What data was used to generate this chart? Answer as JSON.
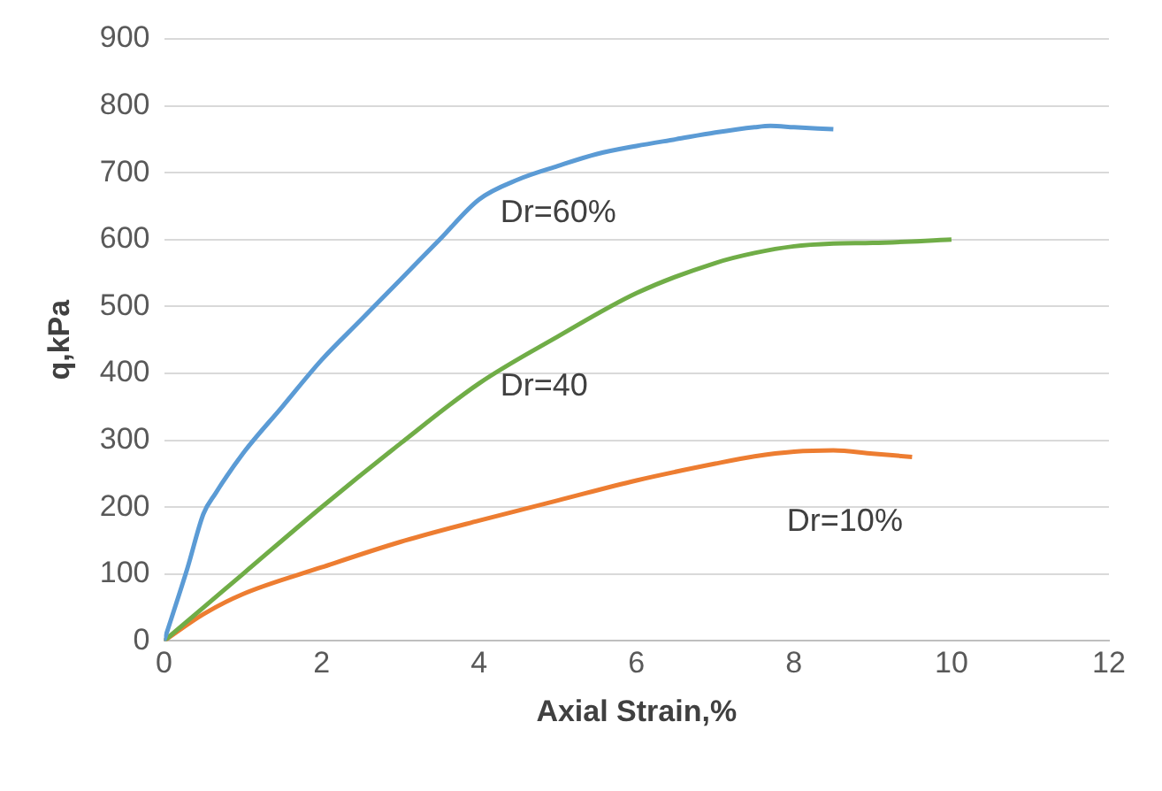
{
  "chart_data": {
    "type": "line",
    "xlabel": "Axial Strain,%",
    "ylabel": "q,kPa",
    "xlim": [
      0,
      12
    ],
    "xticks": [
      0,
      2,
      4,
      6,
      8,
      10,
      12
    ],
    "ylim": [
      0,
      900
    ],
    "yticks": [
      0,
      100,
      200,
      300,
      400,
      500,
      600,
      700,
      800,
      900
    ],
    "grid": "y",
    "marker": "none",
    "series": [
      {
        "name": "Dr=60%",
        "color": "#5b9bd5",
        "x": [
          0,
          0.3,
          0.5,
          0.65,
          1,
          1.5,
          2,
          2.5,
          3,
          3.5,
          4,
          4.5,
          5,
          5.5,
          6,
          6.5,
          7,
          7.5,
          7.7,
          8,
          8.5
        ],
        "values": [
          0,
          110,
          190,
          220,
          280,
          350,
          420,
          480,
          540,
          600,
          660,
          690,
          710,
          728,
          740,
          750,
          760,
          768,
          770,
          768,
          765
        ]
      },
      {
        "name": "Dr=40",
        "color": "#70ad47",
        "x": [
          0,
          0.5,
          1,
          2,
          3,
          4,
          5,
          6,
          7,
          7.5,
          8,
          8.5,
          9,
          10
        ],
        "values": [
          0,
          50,
          100,
          200,
          295,
          385,
          455,
          520,
          565,
          580,
          590,
          594,
          595,
          600
        ]
      },
      {
        "name": "Dr=10%",
        "color": "#ed7d31",
        "x": [
          0,
          0.5,
          1,
          2,
          3,
          4,
          5,
          6,
          7,
          7.5,
          8,
          8.5,
          9,
          9.5
        ],
        "values": [
          0,
          40,
          70,
          110,
          148,
          180,
          210,
          240,
          265,
          276,
          283,
          285,
          280,
          275
        ]
      }
    ]
  }
}
